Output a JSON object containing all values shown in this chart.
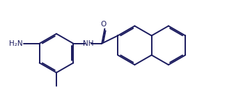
{
  "background": "#ffffff",
  "line_color": "#1a1a5e",
  "line_width": 1.4,
  "dbo": 0.055,
  "fs": 7.5,
  "text_color": "#1a1a5e",
  "fig_width": 3.26,
  "fig_height": 1.5,
  "xlim": [
    0,
    9.5
  ],
  "ylim": [
    0,
    4.2
  ]
}
